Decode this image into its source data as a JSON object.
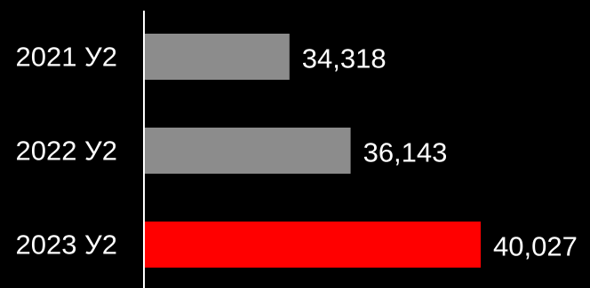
{
  "chart_data": {
    "type": "bar",
    "orientation": "horizontal",
    "categories": [
      "2021 У2",
      "2022 У2",
      "2023 У2"
    ],
    "values": [
      34318,
      36143,
      40027
    ],
    "value_labels": [
      "34,318",
      "36,143",
      "40,027"
    ],
    "bar_colors": [
      "#8c8c8c",
      "#8c8c8c",
      "#ff0000"
    ],
    "background_color": "#000000",
    "axis_color": "#ffffff",
    "label_color": "#ffffff",
    "xlim": [
      30000,
      40027
    ],
    "title": "",
    "xlabel": "",
    "ylabel": "",
    "grid": false,
    "legend": "none"
  }
}
